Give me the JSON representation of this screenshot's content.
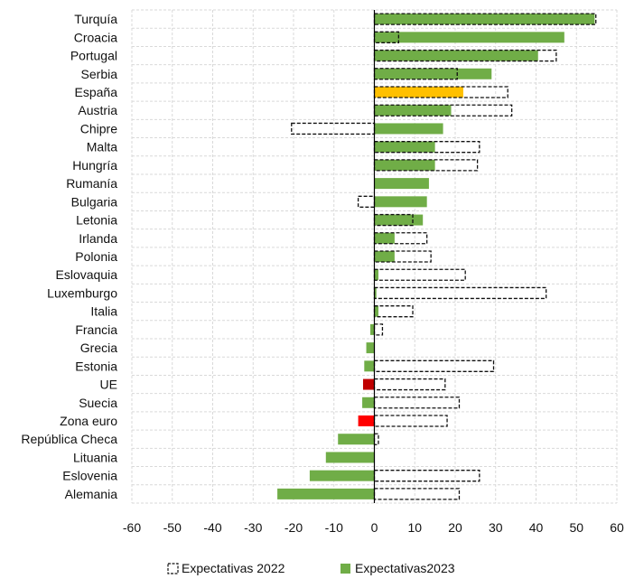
{
  "chart_data": {
    "type": "bar",
    "orientation": "horizontal",
    "categories": [
      "Turquía",
      "Croacia",
      "Portugal",
      "Serbia",
      "España",
      "Austria",
      "Chipre",
      "Malta",
      "Hungría",
      "Rumanía",
      "Bulgaria",
      "Letonia",
      "Irlanda",
      "Polonia",
      "Eslovaquia",
      "Luxemburgo",
      "Italia",
      "Francia",
      "Grecia",
      "Estonia",
      "UE",
      "Suecia",
      "Zona euro",
      "República Checa",
      "Lituania",
      "Eslovenia",
      "Alemania"
    ],
    "series": [
      {
        "name": "Expectativas 2022",
        "style": "dashed-outline",
        "values": [
          54.8,
          6.0,
          45.0,
          20.5,
          33.0,
          34.0,
          -20.5,
          26.0,
          25.5,
          null,
          -4.0,
          9.5,
          13.0,
          14.0,
          22.5,
          42.5,
          9.5,
          2.0,
          null,
          29.5,
          17.5,
          21.0,
          18.0,
          1.0,
          null,
          26.0,
          21.0
        ]
      },
      {
        "name": "Expectativas2023",
        "style": "solid",
        "values": [
          54.5,
          47.0,
          40.5,
          29.0,
          22.0,
          19.0,
          17.0,
          15.0,
          15.0,
          13.5,
          13.0,
          12.0,
          5.0,
          5.0,
          1.0,
          0.5,
          1.0,
          -1.0,
          -2.0,
          -2.5,
          -2.8,
          -3.0,
          -4.0,
          -9.0,
          -12.0,
          -16.0,
          -24.0
        ]
      }
    ],
    "highlight_colors": {
      "España": "#ffc000",
      "UE": "#c00000",
      "Zona euro": "#ff0000"
    },
    "default_color": "#70ad47",
    "dashed_color": "#111111",
    "xlim": [
      -60,
      60
    ],
    "xticks": [
      -60,
      -50,
      -40,
      -30,
      -20,
      -10,
      0,
      10,
      20,
      30,
      40,
      50,
      60
    ],
    "grid": true,
    "legend_position": "bottom",
    "title": "",
    "xlabel": "",
    "ylabel": ""
  }
}
